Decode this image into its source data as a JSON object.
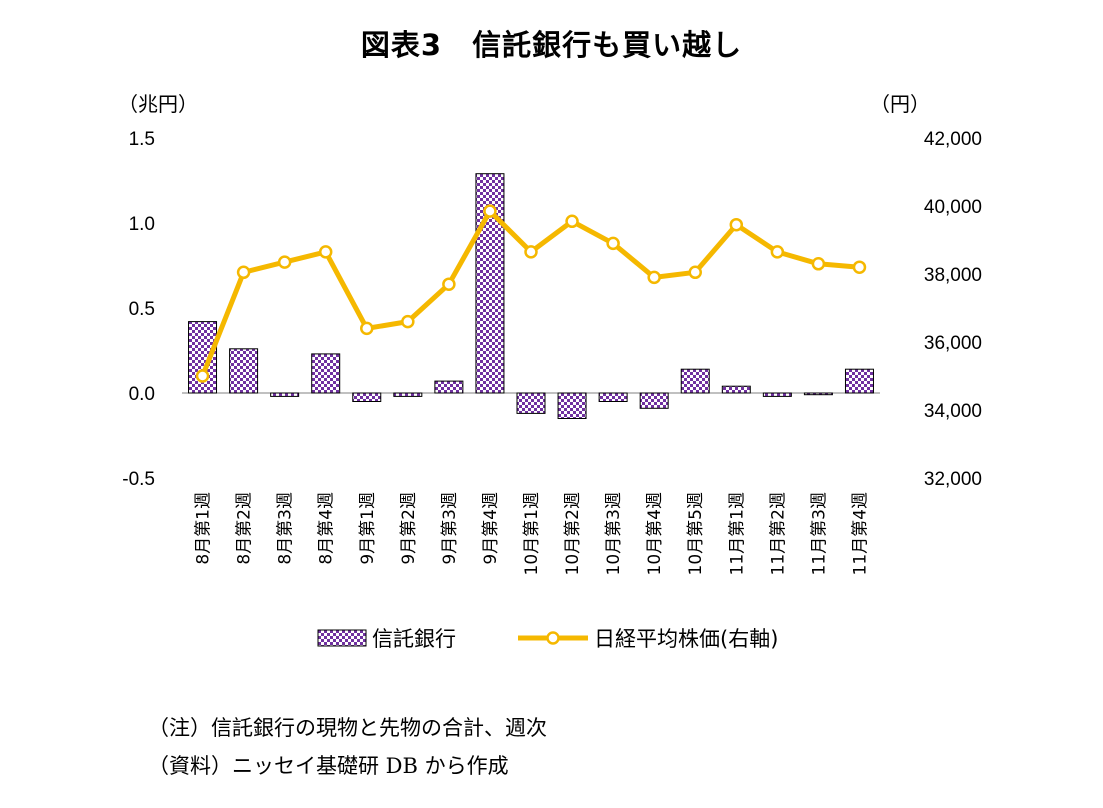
{
  "chart_data": {
    "type": "bar+line",
    "title": "図表3　信託銀行も買い越し",
    "left_axis": {
      "unit_label": "（兆円）",
      "ylim": [
        -0.5,
        1.5
      ],
      "ticks": [
        "1.5",
        "1.0",
        "0.5",
        "0.0",
        "-0.5"
      ],
      "tick_values": [
        1.5,
        1.0,
        0.5,
        0.0,
        -0.5
      ]
    },
    "right_axis": {
      "unit_label": "（円）",
      "ylim": [
        32000,
        42000
      ],
      "ticks": [
        "42,000",
        "40,000",
        "38,000",
        "36,000",
        "34,000",
        "32,000"
      ],
      "tick_values": [
        42000,
        40000,
        38000,
        36000,
        34000,
        32000
      ]
    },
    "categories": [
      "8月第1週",
      "8月第2週",
      "8月第3週",
      "8月第4週",
      "9月第1週",
      "9月第2週",
      "9月第3週",
      "9月第4週",
      "10月第1週",
      "10月第2週",
      "10月第3週",
      "10月第4週",
      "10月第5週",
      "11月第1週",
      "11月第2週",
      "11月第3週",
      "11月第4週"
    ],
    "series": [
      {
        "name": "信託銀行",
        "kind": "bar",
        "axis": "left",
        "values": [
          0.42,
          0.26,
          -0.02,
          0.23,
          -0.05,
          -0.02,
          0.07,
          1.29,
          -0.12,
          -0.15,
          -0.05,
          -0.09,
          0.14,
          0.04,
          -0.02,
          -0.01,
          0.14
        ]
      },
      {
        "name": "日経平均株価(右軸)",
        "kind": "line",
        "axis": "right",
        "values": [
          35000,
          38050,
          38350,
          38650,
          36400,
          36600,
          37700,
          39850,
          38650,
          39550,
          38900,
          37900,
          38050,
          39450,
          38650,
          38300,
          38200
        ]
      }
    ],
    "colors": {
      "bar_fill": "#7030a0",
      "bar_check_light": "#ffffff",
      "line": "#f5b800",
      "marker_fill": "#ffffff"
    }
  },
  "notes": {
    "note1": "（注）信託銀行の現物と先物の合計、週次",
    "note2": "（資料）ニッセイ基礎研 DB から作成"
  }
}
